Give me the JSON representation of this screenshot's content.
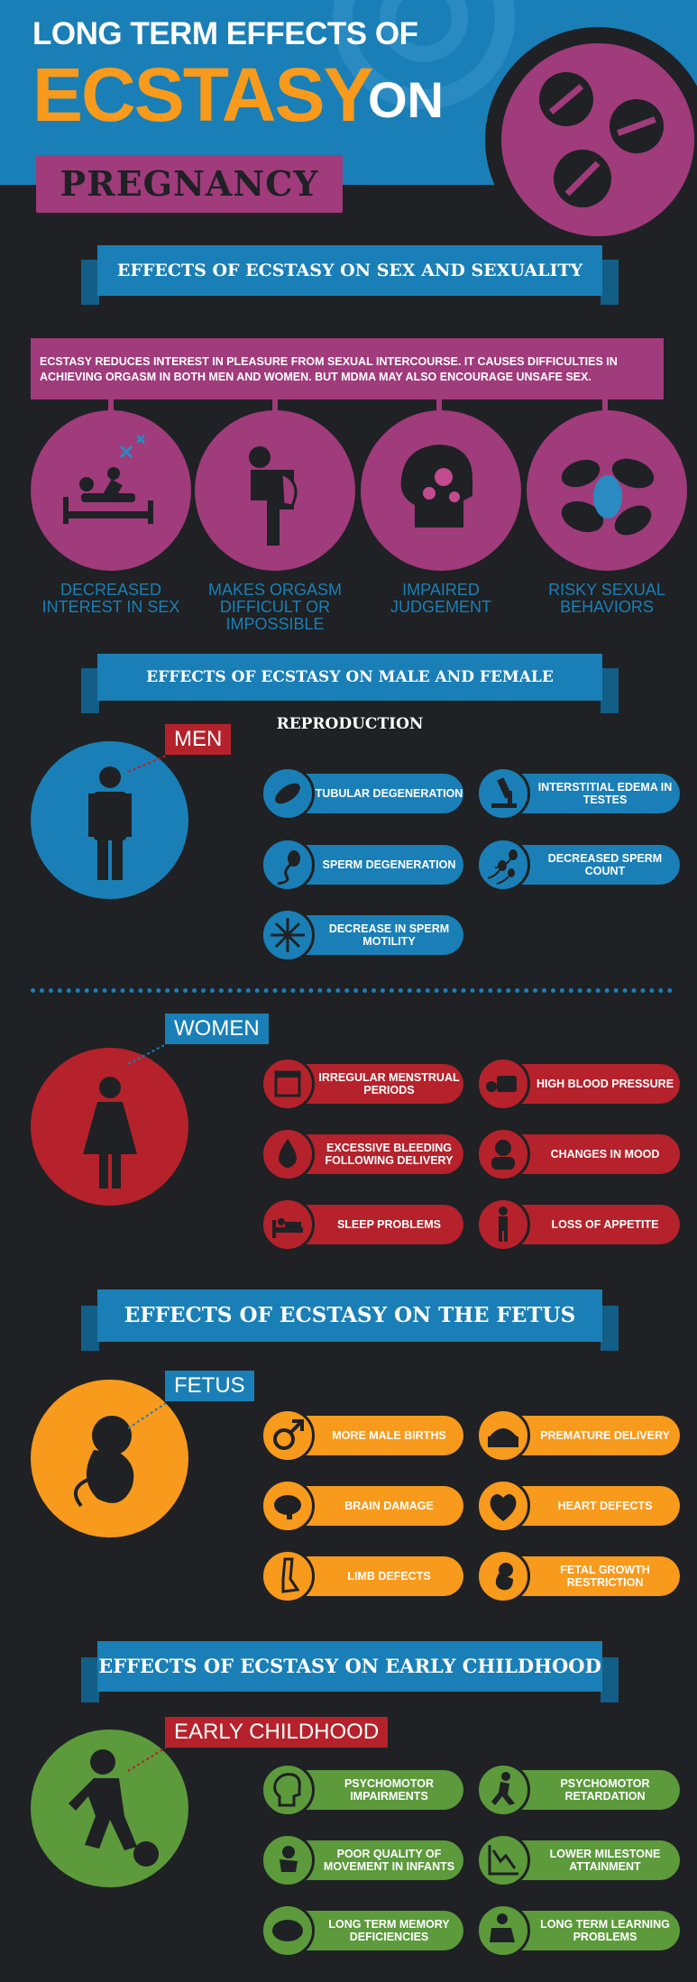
{
  "header": {
    "line1": "LONG TERM EFFECTS OF",
    "line2": "ECSTASY",
    "line3": "ON",
    "line4": "PREGNANCY"
  },
  "section1": {
    "title": "EFFECTS OF ECSTASY ON SEX AND SEXUALITY",
    "intro": "ECSTASY REDUCES INTEREST IN PLEASURE FROM SEXUAL INTERCOURSE. IT CAUSES DIFFICULTIES IN ACHIEVING ORGASM IN BOTH MEN AND WOMEN. BUT MDMA MAY ALSO ENCOURAGE UNSAFE SEX.",
    "items": [
      {
        "label": "DECREASED INTEREST IN SEX",
        "icon": "couple-bed-icon"
      },
      {
        "label": "MAKES ORGASM DIFFICULT OR IMPOSSIBLE",
        "icon": "slumped-person-icon"
      },
      {
        "label": "IMPAIRED JUDGEMENT",
        "icon": "head-gears-icon"
      },
      {
        "label": "RISKY SEXUAL BEHAVIORS",
        "icon": "cells-icon"
      }
    ]
  },
  "section2": {
    "title": "EFFECTS OF ECSTASY ON MALE AND FEMALE REPRODUCTION",
    "men": {
      "tag": "MEN",
      "items": [
        {
          "label": "TUBULAR DEGENERATION",
          "icon": "bacteria-icon"
        },
        {
          "label": "INTERSTITIAL EDEMA IN TESTES",
          "icon": "microscope-icon"
        },
        {
          "label": "SPERM DEGENERATION",
          "icon": "sperm-icon"
        },
        {
          "label": "DECREASED SPERM COUNT",
          "icon": "sperms-icon"
        },
        {
          "label": "DECREASE IN SPERM MOTILITY",
          "icon": "star-burst-icon"
        }
      ]
    },
    "women": {
      "tag": "WOMEN",
      "items": [
        {
          "label": "IRREGULAR MENSTRUAL PERIODS",
          "icon": "calendar-icon"
        },
        {
          "label": "HIGH BLOOD PRESSURE",
          "icon": "blood-pressure-icon"
        },
        {
          "label": "EXCESSIVE BLEEDING FOLLOWING DELIVERY",
          "icon": "blood-drop-icon"
        },
        {
          "label": "CHANGES IN MOOD",
          "icon": "mood-icon"
        },
        {
          "label": "SLEEP PROBLEMS",
          "icon": "bed-icon"
        },
        {
          "label": "LOSS OF APPETITE",
          "icon": "thin-person-icon"
        }
      ]
    }
  },
  "section3": {
    "title": "EFFECTS OF ECSTASY ON THE FETUS",
    "tag": "FETUS",
    "items": [
      {
        "label": "MORE MALE BIRTHS",
        "icon": "male-symbol-icon"
      },
      {
        "label": "PREMATURE DELIVERY",
        "icon": "incubator-icon"
      },
      {
        "label": "BRAIN DAMAGE",
        "icon": "brain-icon"
      },
      {
        "label": "HEART DEFECTS",
        "icon": "heart-icon"
      },
      {
        "label": "LIMB DEFECTS",
        "icon": "leg-icon"
      },
      {
        "label": "FETAL GROWTH RESTRICTION",
        "icon": "fetus-icon"
      }
    ]
  },
  "section4": {
    "title": "EFFECTS OF ECSTASY ON EARLY CHILDHOOD",
    "tag": "EARLY CHILDHOOD",
    "items": [
      {
        "label": "PSYCHOMOTOR IMPAIRMENTS",
        "icon": "head-profile-icon"
      },
      {
        "label": "PSYCHOMOTOR RETARDATION",
        "icon": "running-icon"
      },
      {
        "label": "POOR QUALITY OF MOVEMENT IN INFANTS",
        "icon": "infant-icon"
      },
      {
        "label": "LOWER MILESTONE ATTAINMENT",
        "icon": "decline-chart-icon"
      },
      {
        "label": "LONG TERM MEMORY DEFICIENCIES",
        "icon": "brain-icon"
      },
      {
        "label": "LONG TERM LEARNING PROBLEMS",
        "icon": "reading-icon"
      }
    ]
  },
  "colors": {
    "background": "#1f2124",
    "blue": "#1a7fb6",
    "purple": "#a03b7c",
    "red": "#b5222b",
    "orange": "#f89a1c",
    "green": "#5c9a3c"
  }
}
